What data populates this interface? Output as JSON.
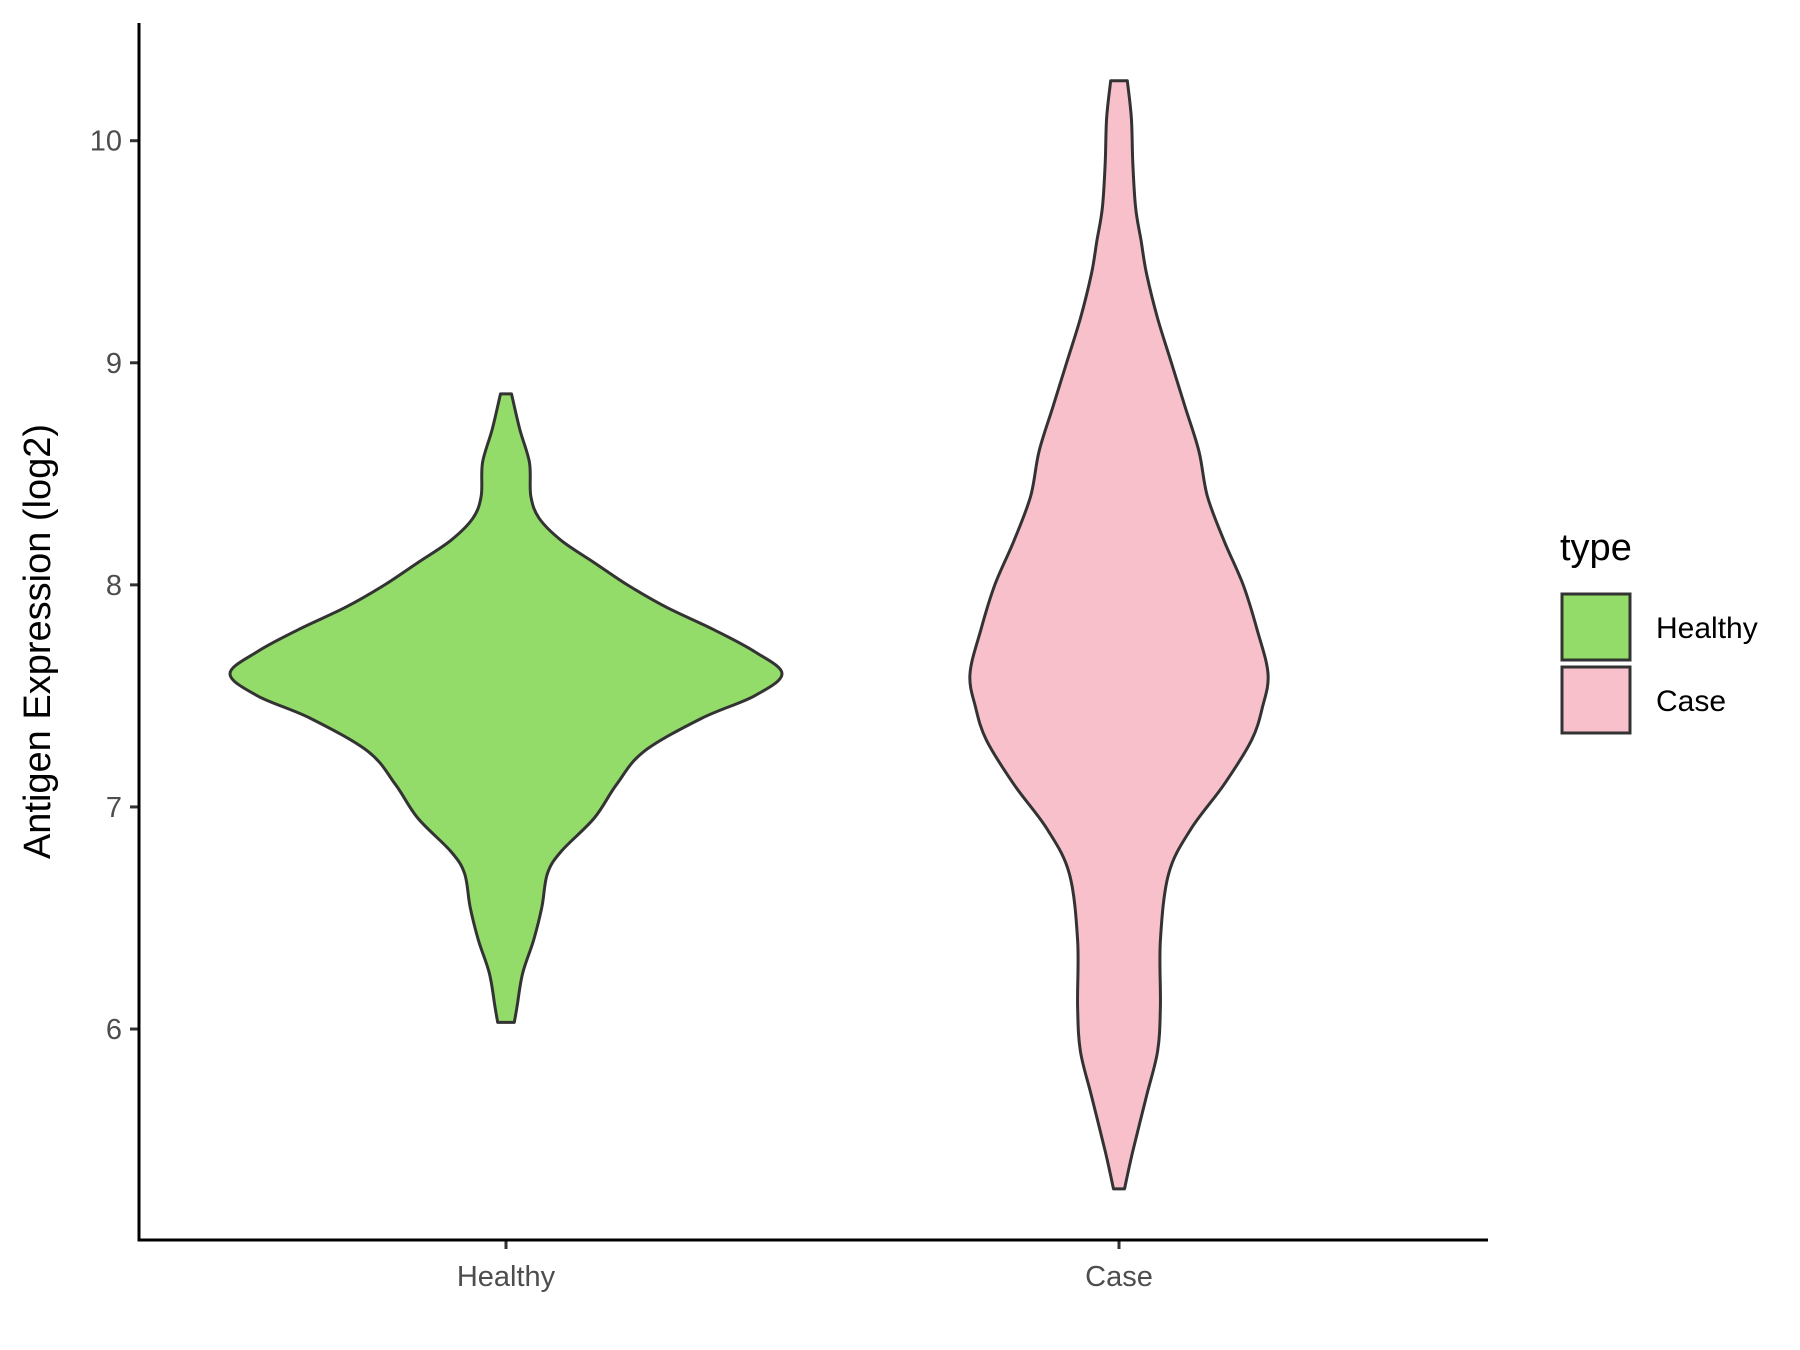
{
  "chart_data": {
    "type": "violin",
    "title": "",
    "xlabel": "",
    "ylabel": "Antigen Expression (log2)",
    "ylim": [
      5.05,
      10.53
    ],
    "yticks": [
      6,
      7,
      8,
      9,
      10
    ],
    "grid": false,
    "legend": {
      "title": "type",
      "placement": "right",
      "entries": [
        {
          "label": "Healthy",
          "color": "#93dc6a"
        },
        {
          "label": "Case",
          "color": "#f7c0cb"
        }
      ]
    },
    "categories": [
      "Healthy",
      "Case"
    ],
    "series": [
      {
        "name": "Healthy",
        "color": "#93dc6a",
        "min": 6.03,
        "max": 8.86,
        "profile": [
          [
            6.03,
            0.03
          ],
          [
            6.1,
            0.04
          ],
          [
            6.25,
            0.06
          ],
          [
            6.4,
            0.1
          ],
          [
            6.55,
            0.13
          ],
          [
            6.7,
            0.15
          ],
          [
            6.8,
            0.2
          ],
          [
            6.95,
            0.32
          ],
          [
            7.1,
            0.4
          ],
          [
            7.25,
            0.5
          ],
          [
            7.4,
            0.71
          ],
          [
            7.5,
            0.9
          ],
          [
            7.6,
            1.0
          ],
          [
            7.7,
            0.9
          ],
          [
            7.8,
            0.75
          ],
          [
            7.9,
            0.58
          ],
          [
            8.0,
            0.44
          ],
          [
            8.1,
            0.32
          ],
          [
            8.2,
            0.2
          ],
          [
            8.3,
            0.12
          ],
          [
            8.4,
            0.09
          ],
          [
            8.55,
            0.085
          ],
          [
            8.7,
            0.05
          ],
          [
            8.86,
            0.02
          ]
        ]
      },
      {
        "name": "Case",
        "color": "#f7c0cb",
        "min": 5.28,
        "max": 10.27,
        "profile": [
          [
            5.28,
            0.02
          ],
          [
            5.45,
            0.05
          ],
          [
            5.7,
            0.1
          ],
          [
            5.9,
            0.14
          ],
          [
            6.1,
            0.15
          ],
          [
            6.4,
            0.15
          ],
          [
            6.7,
            0.18
          ],
          [
            6.9,
            0.26
          ],
          [
            7.1,
            0.38
          ],
          [
            7.3,
            0.48
          ],
          [
            7.45,
            0.52
          ],
          [
            7.6,
            0.54
          ],
          [
            7.8,
            0.5
          ],
          [
            8.0,
            0.45
          ],
          [
            8.2,
            0.38
          ],
          [
            8.4,
            0.32
          ],
          [
            8.6,
            0.29
          ],
          [
            8.8,
            0.24
          ],
          [
            9.0,
            0.19
          ],
          [
            9.2,
            0.14
          ],
          [
            9.4,
            0.1
          ],
          [
            9.55,
            0.08
          ],
          [
            9.7,
            0.06
          ],
          [
            9.9,
            0.05
          ],
          [
            10.1,
            0.045
          ],
          [
            10.27,
            0.03
          ]
        ]
      }
    ]
  }
}
